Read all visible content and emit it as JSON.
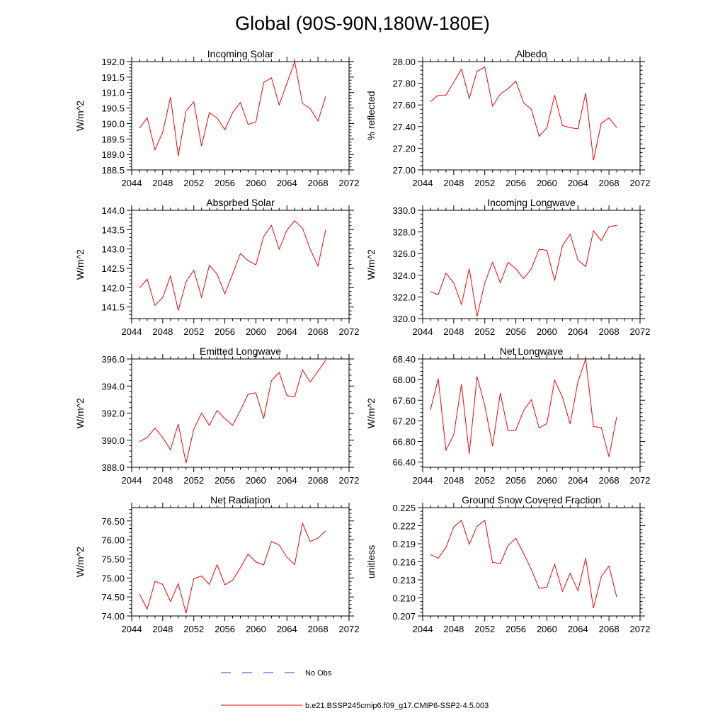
{
  "page_title": "Global (90S-90N,180W-180E)",
  "legend": {
    "obs_label": "No Obs",
    "obs_color": "#3a3ad6",
    "model_label": "b.e21.BSSP245cmip6.f09_g17.CMIP6-SSP2-4.5.003",
    "model_color": "#ff0000"
  },
  "chart_data": [
    {
      "type": "line",
      "title": "Incoming Solar",
      "ylabel": "W/m^2",
      "xlabel": "",
      "xlim": [
        2044,
        2072
      ],
      "ylim": [
        188.5,
        192.0
      ],
      "xticks": [
        2044,
        2048,
        2052,
        2056,
        2060,
        2064,
        2068,
        2072
      ],
      "yticks": [
        188.5,
        189.0,
        189.5,
        190.0,
        190.5,
        191.0,
        191.5,
        192.0
      ],
      "ytick_labels": [
        "188.5",
        "189.0",
        "189.5",
        "190.0",
        "190.5",
        "191.0",
        "191.5",
        "192.0"
      ],
      "x": [
        2045,
        2046,
        2047,
        2048,
        2049,
        2050,
        2051,
        2052,
        2053,
        2054,
        2055,
        2056,
        2057,
        2058,
        2059,
        2060,
        2061,
        2062,
        2063,
        2064,
        2065,
        2066,
        2067,
        2068,
        2069
      ],
      "series": [
        {
          "name": "b.e21.BSSP245cmip6.f09_g17.CMIP6-SSP2-4.5.003",
          "values": [
            189.85,
            190.18,
            189.15,
            189.72,
            190.85,
            188.95,
            190.4,
            190.7,
            189.27,
            190.35,
            190.18,
            189.8,
            190.35,
            190.68,
            189.97,
            190.05,
            191.32,
            191.48,
            190.6,
            191.3,
            192.0,
            190.65,
            190.48,
            190.08,
            190.88
          ]
        }
      ]
    },
    {
      "type": "line",
      "title": "Albedo",
      "ylabel": "% reflected",
      "xlabel": "",
      "xlim": [
        2044,
        2072
      ],
      "ylim": [
        27.0,
        28.0
      ],
      "xticks": [
        2044,
        2048,
        2052,
        2056,
        2060,
        2064,
        2068,
        2072
      ],
      "yticks": [
        27.0,
        27.2,
        27.4,
        27.6,
        27.8,
        28.0
      ],
      "ytick_labels": [
        "27.00",
        "27.20",
        "27.40",
        "27.60",
        "27.80",
        "28.00"
      ],
      "x": [
        2045,
        2046,
        2047,
        2048,
        2049,
        2050,
        2051,
        2052,
        2053,
        2054,
        2055,
        2056,
        2057,
        2058,
        2059,
        2060,
        2061,
        2062,
        2063,
        2064,
        2065,
        2066,
        2067,
        2068,
        2069
      ],
      "series": [
        {
          "name": "b.e21.BSSP245cmip6.f09_g17.CMIP6-SSP2-4.5.003",
          "values": [
            27.63,
            27.69,
            27.69,
            27.81,
            27.93,
            27.66,
            27.91,
            27.95,
            27.59,
            27.7,
            27.75,
            27.82,
            27.62,
            27.56,
            27.31,
            27.39,
            27.69,
            27.41,
            27.39,
            27.38,
            27.71,
            27.09,
            27.43,
            27.48,
            27.39
          ]
        }
      ]
    },
    {
      "type": "line",
      "title": "Absorbed Solar",
      "ylabel": "W/m^2",
      "xlabel": "",
      "xlim": [
        2044,
        2072
      ],
      "ylim": [
        141.2,
        144.0
      ],
      "xticks": [
        2044,
        2048,
        2052,
        2056,
        2060,
        2064,
        2068,
        2072
      ],
      "yticks": [
        141.5,
        142.0,
        142.5,
        143.0,
        143.5,
        144.0
      ],
      "ytick_labels": [
        "141.5",
        "142.0",
        "142.5",
        "143.0",
        "143.5",
        "144.0"
      ],
      "x": [
        2045,
        2046,
        2047,
        2048,
        2049,
        2050,
        2051,
        2052,
        2053,
        2054,
        2055,
        2056,
        2057,
        2058,
        2059,
        2060,
        2061,
        2062,
        2063,
        2064,
        2065,
        2066,
        2067,
        2068,
        2069
      ],
      "series": [
        {
          "name": "b.e21.BSSP245cmip6.f09_g17.CMIP6-SSP2-4.5.003",
          "values": [
            141.99,
            142.22,
            141.54,
            141.75,
            142.3,
            141.41,
            142.15,
            142.45,
            141.75,
            142.58,
            142.35,
            141.84,
            142.35,
            142.88,
            142.7,
            142.59,
            143.32,
            143.61,
            142.99,
            143.49,
            143.73,
            143.54,
            142.99,
            142.56,
            143.5
          ]
        }
      ]
    },
    {
      "type": "line",
      "title": "Incoming Longwave",
      "ylabel": "W/m^2",
      "xlabel": "",
      "xlim": [
        2044,
        2072
      ],
      "ylim": [
        320.0,
        330.0
      ],
      "xticks": [
        2044,
        2048,
        2052,
        2056,
        2060,
        2064,
        2068,
        2072
      ],
      "yticks": [
        320.0,
        322.0,
        324.0,
        326.0,
        328.0,
        330.0
      ],
      "ytick_labels": [
        "320.0",
        "322.0",
        "324.0",
        "326.0",
        "328.0",
        "330.0"
      ],
      "x": [
        2045,
        2046,
        2047,
        2048,
        2049,
        2050,
        2051,
        2052,
        2053,
        2054,
        2055,
        2056,
        2057,
        2058,
        2059,
        2060,
        2061,
        2062,
        2063,
        2064,
        2065,
        2066,
        2067,
        2068,
        2069
      ],
      "series": [
        {
          "name": "b.e21.BSSP245cmip6.f09_g17.CMIP6-SSP2-4.5.003",
          "values": [
            322.5,
            322.2,
            324.2,
            323.3,
            321.3,
            324.6,
            320.2,
            323.3,
            325.2,
            323.3,
            325.2,
            324.6,
            323.7,
            324.6,
            326.4,
            326.3,
            323.5,
            326.7,
            327.8,
            325.4,
            324.8,
            328.1,
            327.2,
            328.5,
            328.6
          ]
        }
      ]
    },
    {
      "type": "line",
      "title": "Emitted Longwave",
      "ylabel": "W/m^2",
      "xlabel": "",
      "xlim": [
        2044,
        2072
      ],
      "ylim": [
        388.0,
        396.0
      ],
      "xticks": [
        2044,
        2048,
        2052,
        2056,
        2060,
        2064,
        2068,
        2072
      ],
      "yticks": [
        388.0,
        390.0,
        392.0,
        394.0,
        396.0
      ],
      "ytick_labels": [
        "388.0",
        "390.0",
        "392.0",
        "394.0",
        "396.0"
      ],
      "x": [
        2045,
        2046,
        2047,
        2048,
        2049,
        2050,
        2051,
        2052,
        2053,
        2054,
        2055,
        2056,
        2057,
        2058,
        2059,
        2060,
        2061,
        2062,
        2063,
        2064,
        2065,
        2066,
        2067,
        2068,
        2069
      ],
      "series": [
        {
          "name": "b.e21.BSSP245cmip6.f09_g17.CMIP6-SSP2-4.5.003",
          "values": [
            389.9,
            390.2,
            390.9,
            390.2,
            389.3,
            391.2,
            388.3,
            390.8,
            392.0,
            391.1,
            392.2,
            391.6,
            391.1,
            392.2,
            393.4,
            393.5,
            391.6,
            394.4,
            395.0,
            393.3,
            393.2,
            395.2,
            394.3,
            395.1,
            395.9
          ]
        }
      ]
    },
    {
      "type": "line",
      "title": "Net Longwave",
      "ylabel": "W/m^2",
      "xlabel": "",
      "xlim": [
        2044,
        2072
      ],
      "ylim": [
        66.3,
        68.4
      ],
      "xticks": [
        2044,
        2048,
        2052,
        2056,
        2060,
        2064,
        2068,
        2072
      ],
      "yticks": [
        66.4,
        66.8,
        67.2,
        67.6,
        68.0,
        68.4
      ],
      "ytick_labels": [
        "66.40",
        "66.80",
        "67.20",
        "67.60",
        "68.00",
        "68.40"
      ],
      "x": [
        2045,
        2046,
        2047,
        2048,
        2049,
        2050,
        2051,
        2052,
        2053,
        2054,
        2055,
        2056,
        2057,
        2058,
        2059,
        2060,
        2061,
        2062,
        2063,
        2064,
        2065,
        2066,
        2067,
        2068,
        2069
      ],
      "series": [
        {
          "name": "b.e21.BSSP245cmip6.f09_g17.CMIP6-SSP2-4.5.003",
          "values": [
            67.41,
            68.02,
            66.63,
            66.93,
            67.91,
            66.56,
            68.06,
            67.5,
            66.71,
            67.74,
            67.01,
            67.02,
            67.4,
            67.61,
            67.06,
            67.15,
            67.99,
            67.66,
            67.14,
            67.96,
            68.4,
            67.09,
            67.07,
            66.5,
            67.28
          ]
        }
      ]
    },
    {
      "type": "line",
      "title": "Net Radiation",
      "ylabel": "W/m^2",
      "xlabel": "",
      "xlim": [
        2044,
        2072
      ],
      "ylim": [
        74.0,
        76.85
      ],
      "xticks": [
        2044,
        2048,
        2052,
        2056,
        2060,
        2064,
        2068,
        2072
      ],
      "yticks": [
        74.0,
        74.5,
        75.0,
        75.5,
        76.0,
        76.5
      ],
      "ytick_labels": [
        "74.00",
        "74.50",
        "75.00",
        "75.50",
        "76.00",
        "76.50"
      ],
      "x": [
        2045,
        2046,
        2047,
        2048,
        2049,
        2050,
        2051,
        2052,
        2053,
        2054,
        2055,
        2056,
        2057,
        2058,
        2059,
        2060,
        2061,
        2062,
        2063,
        2064,
        2065,
        2066,
        2067,
        2068,
        2069
      ],
      "series": [
        {
          "name": "b.e21.BSSP245cmip6.f09_g17.CMIP6-SSP2-4.5.003",
          "values": [
            74.58,
            74.18,
            74.91,
            74.83,
            74.38,
            74.85,
            74.07,
            74.98,
            75.05,
            74.83,
            75.35,
            74.82,
            74.94,
            75.27,
            75.63,
            75.42,
            75.34,
            75.96,
            75.87,
            75.54,
            75.35,
            76.44,
            75.96,
            76.05,
            76.24
          ]
        }
      ]
    },
    {
      "type": "line",
      "title": "Ground Snow Covered Fraction",
      "ylabel": "unitless",
      "xlabel": "",
      "xlim": [
        2044,
        2072
      ],
      "ylim": [
        0.207,
        0.225
      ],
      "xticks": [
        2044,
        2048,
        2052,
        2056,
        2060,
        2064,
        2068,
        2072
      ],
      "yticks": [
        0.207,
        0.21,
        0.213,
        0.216,
        0.219,
        0.222,
        0.225
      ],
      "ytick_labels": [
        "0.207",
        "0.210",
        "0.213",
        "0.216",
        "0.219",
        "0.222",
        "0.225"
      ],
      "x": [
        2045,
        2046,
        2047,
        2048,
        2049,
        2050,
        2051,
        2052,
        2053,
        2054,
        2055,
        2056,
        2057,
        2058,
        2059,
        2060,
        2061,
        2062,
        2063,
        2064,
        2065,
        2066,
        2067,
        2068,
        2069
      ],
      "series": [
        {
          "name": "b.e21.BSSP245cmip6.f09_g17.CMIP6-SSP2-4.5.003",
          "values": [
            0.2172,
            0.2166,
            0.2184,
            0.2218,
            0.2229,
            0.2189,
            0.2219,
            0.2229,
            0.2159,
            0.2157,
            0.2187,
            0.2199,
            0.2174,
            0.2147,
            0.2116,
            0.2118,
            0.2156,
            0.2111,
            0.2141,
            0.2112,
            0.2166,
            0.2083,
            0.2135,
            0.2153,
            0.2101
          ]
        }
      ]
    }
  ]
}
